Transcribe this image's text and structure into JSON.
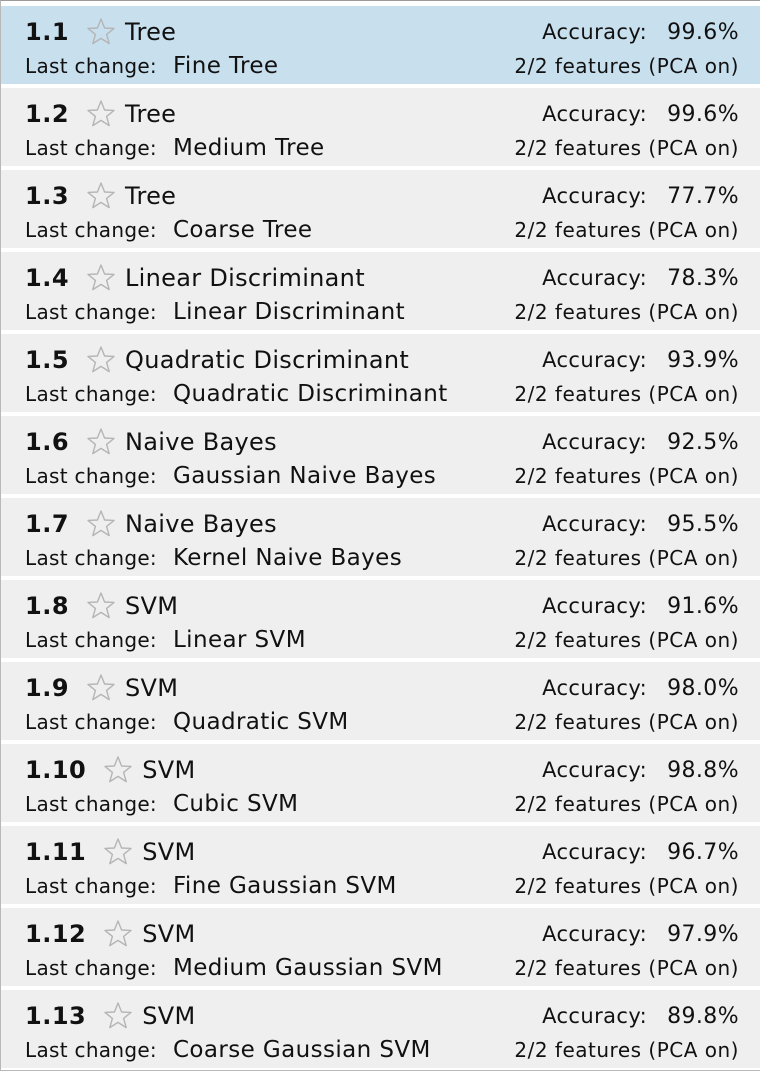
{
  "labels": {
    "accuracy": "Accuracy:",
    "last_change": "Last change:"
  },
  "colors": {
    "row_background": "#efefef",
    "selected_background": "#c8dfee",
    "star_outline": "#b5b5b5"
  },
  "icons": {
    "favorite": "star-outline-icon"
  },
  "models": [
    {
      "number": "1.1",
      "type": "Tree",
      "accuracy": "99.6%",
      "last_change": "Fine Tree",
      "features": "2/2 features (PCA on)",
      "selected": true
    },
    {
      "number": "1.2",
      "type": "Tree",
      "accuracy": "99.6%",
      "last_change": "Medium Tree",
      "features": "2/2 features (PCA on)",
      "selected": false
    },
    {
      "number": "1.3",
      "type": "Tree",
      "accuracy": "77.7%",
      "last_change": "Coarse Tree",
      "features": "2/2 features (PCA on)",
      "selected": false
    },
    {
      "number": "1.4",
      "type": "Linear Discriminant",
      "accuracy": "78.3%",
      "last_change": "Linear Discriminant",
      "features": "2/2 features (PCA on)",
      "selected": false
    },
    {
      "number": "1.5",
      "type": "Quadratic Discriminant",
      "accuracy": "93.9%",
      "last_change": "Quadratic Discriminant",
      "features": "2/2 features (PCA on)",
      "selected": false
    },
    {
      "number": "1.6",
      "type": "Naive Bayes",
      "accuracy": "92.5%",
      "last_change": "Gaussian Naive Bayes",
      "features": "2/2 features (PCA on)",
      "selected": false
    },
    {
      "number": "1.7",
      "type": "Naive Bayes",
      "accuracy": "95.5%",
      "last_change": "Kernel Naive Bayes",
      "features": "2/2 features (PCA on)",
      "selected": false
    },
    {
      "number": "1.8",
      "type": "SVM",
      "accuracy": "91.6%",
      "last_change": "Linear SVM",
      "features": "2/2 features (PCA on)",
      "selected": false
    },
    {
      "number": "1.9",
      "type": "SVM",
      "accuracy": "98.0%",
      "last_change": "Quadratic SVM",
      "features": "2/2 features (PCA on)",
      "selected": false
    },
    {
      "number": "1.10",
      "type": "SVM",
      "accuracy": "98.8%",
      "last_change": "Cubic SVM",
      "features": "2/2 features (PCA on)",
      "selected": false
    },
    {
      "number": "1.11",
      "type": "SVM",
      "accuracy": "96.7%",
      "last_change": "Fine Gaussian SVM",
      "features": "2/2 features (PCA on)",
      "selected": false
    },
    {
      "number": "1.12",
      "type": "SVM",
      "accuracy": "97.9%",
      "last_change": "Medium Gaussian SVM",
      "features": "2/2 features (PCA on)",
      "selected": false
    },
    {
      "number": "1.13",
      "type": "SVM",
      "accuracy": "89.8%",
      "last_change": "Coarse Gaussian SVM",
      "features": "2/2 features (PCA on)",
      "selected": false
    }
  ]
}
